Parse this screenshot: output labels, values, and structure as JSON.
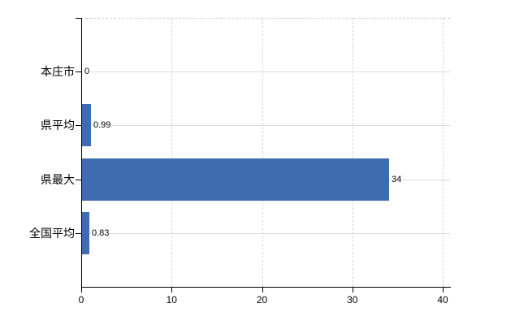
{
  "chart_data": {
    "type": "bar",
    "orientation": "horizontal",
    "categories": [
      "本庄市",
      "県平均",
      "県最大",
      "全国平均"
    ],
    "values": [
      0,
      0.99,
      34,
      0.83
    ],
    "value_labels": [
      "0",
      "0.99",
      "34",
      "0.83"
    ],
    "x_tick_labels": [
      "0",
      "10",
      "20",
      "30",
      "40"
    ],
    "x_tick_values": [
      0,
      10,
      20,
      30,
      40
    ],
    "xlim": [
      0,
      40
    ],
    "grid": true,
    "legend": false,
    "bar_color": "#3d6db0",
    "gridline_color": "#dadada",
    "axis_color": "#000000",
    "background_color": "#ffffff"
  }
}
